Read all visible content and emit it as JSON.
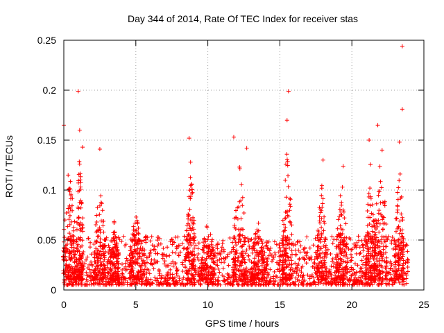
{
  "chart_data": {
    "type": "scatter",
    "title": "Day 344 of 2014, Rate Of TEC Index for receiver stas",
    "xlabel": "GPS time / hours",
    "ylabel": "ROTI / TECUs",
    "xlim": [
      0,
      25
    ],
    "ylim": [
      0,
      0.25
    ],
    "xticks": [
      0,
      5,
      10,
      15,
      20,
      25
    ],
    "xtick_labels": [
      "0",
      "5",
      "10",
      "15",
      "20",
      "25"
    ],
    "yticks": [
      0,
      0.05,
      0.1,
      0.15,
      0.2,
      0.25
    ],
    "ytick_labels": [
      "0",
      "0.05",
      "0.1",
      "0.15",
      "0.2",
      "0.25"
    ],
    "grid": true,
    "marker": "+",
    "marker_color": "#ff0000",
    "data_x_range": [
      0,
      23.9
    ],
    "typical_value_range": [
      0.005,
      0.04
    ],
    "peaks": [
      {
        "x": 0.0,
        "y": 0.165
      },
      {
        "x": 0.3,
        "y": 0.115
      },
      {
        "x": 1.0,
        "y": 0.199
      },
      {
        "x": 1.1,
        "y": 0.16
      },
      {
        "x": 1.3,
        "y": 0.143
      },
      {
        "x": 2.5,
        "y": 0.141
      },
      {
        "x": 8.7,
        "y": 0.152
      },
      {
        "x": 11.8,
        "y": 0.153
      },
      {
        "x": 12.2,
        "y": 0.123
      },
      {
        "x": 12.7,
        "y": 0.142
      },
      {
        "x": 15.6,
        "y": 0.199
      },
      {
        "x": 15.5,
        "y": 0.17
      },
      {
        "x": 18.0,
        "y": 0.13
      },
      {
        "x": 19.4,
        "y": 0.124
      },
      {
        "x": 21.2,
        "y": 0.15
      },
      {
        "x": 21.8,
        "y": 0.165
      },
      {
        "x": 22.1,
        "y": 0.14
      },
      {
        "x": 23.3,
        "y": 0.148
      },
      {
        "x": 23.5,
        "y": 0.244
      },
      {
        "x": 23.5,
        "y": 0.181
      }
    ],
    "bursts": [
      {
        "x": 0.4,
        "width": 0.9,
        "height": 0.11
      },
      {
        "x": 1.1,
        "width": 0.5,
        "height": 0.13
      },
      {
        "x": 2.5,
        "width": 0.8,
        "height": 0.1
      },
      {
        "x": 3.5,
        "width": 0.6,
        "height": 0.06
      },
      {
        "x": 5.0,
        "width": 0.9,
        "height": 0.07
      },
      {
        "x": 8.8,
        "width": 0.6,
        "height": 0.12
      },
      {
        "x": 10.0,
        "width": 1.0,
        "height": 0.06
      },
      {
        "x": 12.2,
        "width": 0.9,
        "height": 0.12
      },
      {
        "x": 13.5,
        "width": 1.0,
        "height": 0.06
      },
      {
        "x": 15.5,
        "width": 0.7,
        "height": 0.14
      },
      {
        "x": 17.9,
        "width": 0.7,
        "height": 0.1
      },
      {
        "x": 19.3,
        "width": 0.8,
        "height": 0.1
      },
      {
        "x": 21.3,
        "width": 0.7,
        "height": 0.12
      },
      {
        "x": 22.0,
        "width": 0.9,
        "height": 0.13
      },
      {
        "x": 23.3,
        "width": 0.6,
        "height": 0.12
      }
    ]
  }
}
